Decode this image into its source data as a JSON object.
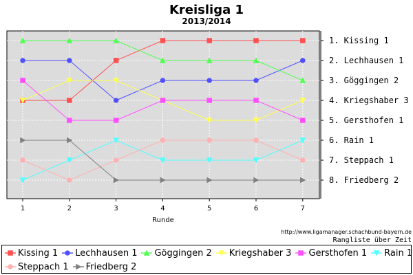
{
  "chart_data": {
    "type": "line",
    "title": "Kreisliga 1",
    "subtitle": "2013/2014",
    "xlabel": "Runde",
    "ylabel": "",
    "x": [
      1,
      2,
      3,
      4,
      5,
      6,
      7
    ],
    "ylim": [
      1,
      8
    ],
    "y_inverted": true,
    "grid": true,
    "legend": "bottom",
    "right_labels": [
      "1. Kissing 1",
      "2. Lechhausen 1",
      "3. Göggingen 2",
      "4. Kriegshaber 3",
      "5. Gersthofen 1",
      "6. Rain 1",
      "7. Steppach 1",
      "8. Friedberg 2"
    ],
    "series": [
      {
        "name": "Kissing 1",
        "color": "#ff5050",
        "marker": "square",
        "values": [
          4,
          4,
          2,
          1,
          1,
          1,
          1
        ]
      },
      {
        "name": "Lechhausen 1",
        "color": "#5050ff",
        "marker": "circle",
        "values": [
          2,
          2,
          4,
          3,
          3,
          3,
          2
        ]
      },
      {
        "name": "Göggingen 2",
        "color": "#50ff50",
        "marker": "triangle-up",
        "values": [
          1,
          1,
          1,
          2,
          2,
          2,
          3
        ]
      },
      {
        "name": "Kriegshaber 3",
        "color": "#ffff50",
        "marker": "triangle-down",
        "values": [
          4,
          3,
          3,
          4,
          5,
          5,
          4
        ]
      },
      {
        "name": "Gersthofen 1",
        "color": "#ff50ff",
        "marker": "square",
        "values": [
          3,
          5,
          5,
          4,
          4,
          4,
          5
        ]
      },
      {
        "name": "Rain 1",
        "color": "#50ffff",
        "marker": "triangle-down",
        "values": [
          8,
          7,
          6,
          7,
          7,
          7,
          6
        ]
      },
      {
        "name": "Steppach 1",
        "color": "#ffb0b0",
        "marker": "circle",
        "values": [
          7,
          8,
          7,
          6,
          6,
          6,
          7
        ]
      },
      {
        "name": "Friedberg 2",
        "color": "#808080",
        "marker": "triangle-right",
        "values": [
          6,
          6,
          8,
          8,
          8,
          8,
          8
        ]
      }
    ]
  },
  "credits": {
    "url": "http://www.ligamanager.schachbund-bayern.de",
    "caption": "Rangliste über Zeit"
  }
}
